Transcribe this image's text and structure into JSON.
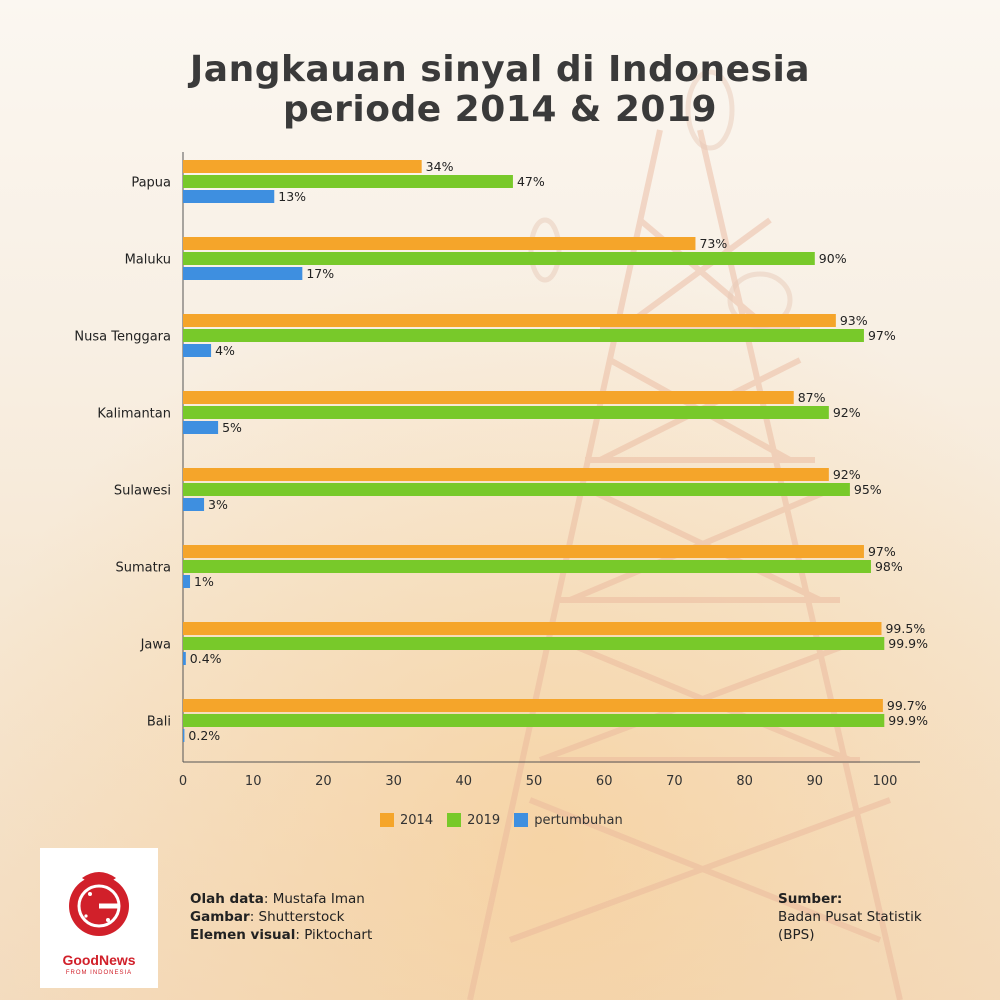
{
  "title": {
    "line1": "Jangkauan sinyal di Indonesia",
    "line2": "periode 2014 & 2019"
  },
  "chart_data": {
    "type": "bar",
    "orientation": "horizontal",
    "categories": [
      "Papua",
      "Maluku",
      "Nusa Tenggara",
      "Kalimantan",
      "Sulawesi",
      "Sumatra",
      "Jawa",
      "Bali"
    ],
    "series": [
      {
        "name": "2014",
        "color": "#f5a52a",
        "values": [
          34,
          73,
          93,
          87,
          92,
          97,
          99.5,
          99.7
        ],
        "labels": [
          "34%",
          "73%",
          "93%",
          "87%",
          "92%",
          "97%",
          "99.5%",
          "99.7%"
        ]
      },
      {
        "name": "2019",
        "color": "#78c92a",
        "values": [
          47,
          90,
          97,
          92,
          95,
          98,
          99.9,
          99.9
        ],
        "labels": [
          "47%",
          "90%",
          "97%",
          "92%",
          "95%",
          "98%",
          "99.9%",
          "99.9%"
        ]
      },
      {
        "name": "pertumbuhan",
        "color": "#3e8fe0",
        "values": [
          13,
          17,
          4,
          5,
          3,
          1,
          0.4,
          0.2
        ],
        "labels": [
          "13%",
          "17%",
          "4%",
          "5%",
          "3%",
          "1%",
          "0.4%",
          "0.2%"
        ]
      }
    ],
    "xlim": [
      0,
      100
    ],
    "xticks": [
      "0",
      "10",
      "20",
      "30",
      "40",
      "50",
      "60",
      "70",
      "80",
      "90",
      "100"
    ],
    "grid": false,
    "legend_position": "bottom"
  },
  "credits": {
    "data_label": "Olah data",
    "data_value": ": Mustafa Iman",
    "image_label": "Gambar",
    "image_value": ": Shutterstock",
    "visual_label": "Elemen visual",
    "visual_value": ": Piktochart"
  },
  "source": {
    "label": "Sumber:",
    "line1": "Badan Pusat Statistik",
    "line2": "(BPS)"
  },
  "logo": {
    "name": "GoodNews",
    "sub": "FROM INDONESIA",
    "color": "#d1202a"
  }
}
